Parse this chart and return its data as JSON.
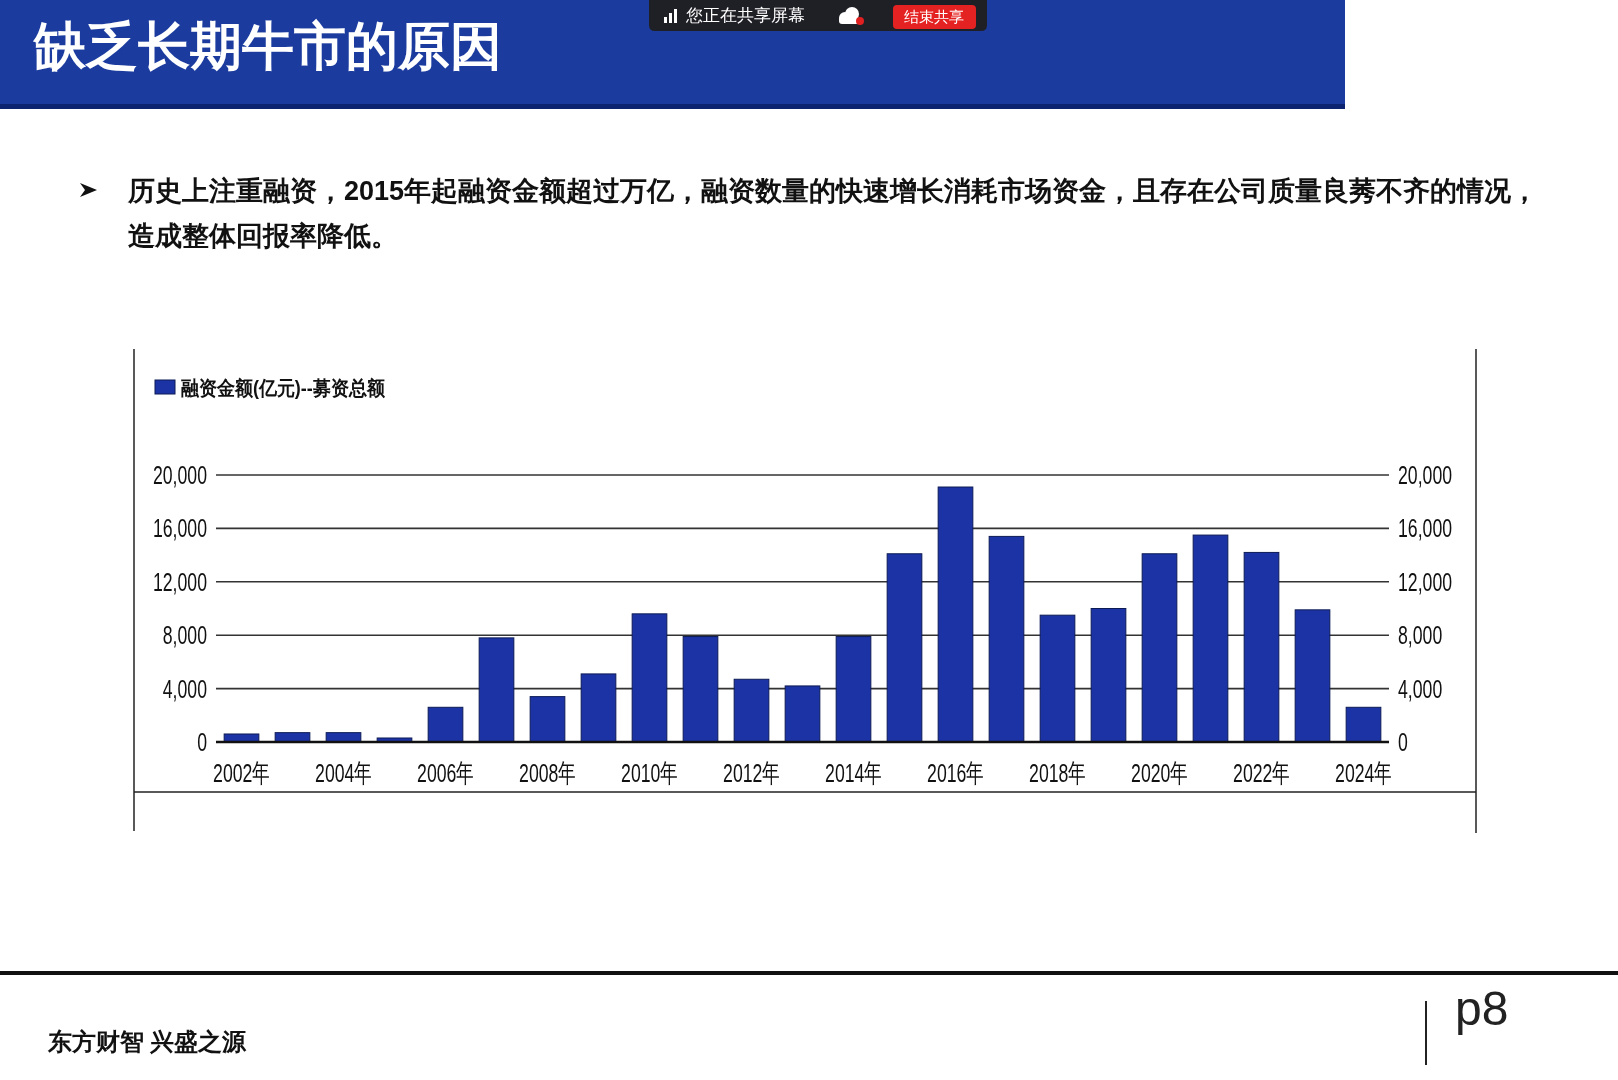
{
  "chart_data": {
    "type": "bar",
    "title": "缺乏长期牛市的原因",
    "subtitle": "历史上注重融资，2015年起融资金额超过万亿，融资数量的快速增长消耗市场资金，且存在公司质量良莠不齐的情况，造成整体回报率降低。",
    "categories": [
      "2002年",
      null,
      "2004年",
      null,
      "2006年",
      null,
      "2008年",
      null,
      "2010年",
      null,
      "2012年",
      null,
      "2014年",
      null,
      "2016年",
      null,
      "2018年",
      null,
      "2020年",
      null,
      "2022年",
      null,
      "2024年"
    ],
    "series": [
      {
        "name": "融资金额(亿元)--募资总额",
        "color": "#1c33a6",
        "values": [
          600,
          700,
          700,
          300,
          2600,
          7800,
          3400,
          5100,
          9600,
          7900,
          4700,
          4200,
          7900,
          14100,
          19100,
          15400,
          9500,
          10000,
          14100,
          15500,
          14200,
          9900,
          2600
        ]
      }
    ],
    "ylim": [
      0,
      20000
    ],
    "yticks": [
      0,
      {
        "value": 4000,
        "label": "4,000"
      },
      {
        "value": 8000,
        "label": "8,000"
      },
      {
        "value": 12000,
        "label": "12,000"
      },
      {
        "value": 16000,
        "label": "16,000"
      },
      {
        "value": 20000,
        "label": "20,000"
      }
    ],
    "y2lim": [
      0,
      20000
    ],
    "y2ticks": [
      0,
      {
        "value": 4000,
        "label": "4,000"
      },
      {
        "value": 8000,
        "label": "8,000"
      },
      {
        "value": 12000,
        "label": "12,000"
      },
      {
        "value": 16000,
        "label": "16,000"
      },
      {
        "value": 20000,
        "label": "20,000"
      }
    ],
    "grid": "y",
    "legend": "top left",
    "annotations": [
      "您正在共享屏幕",
      "结束共享",
      "东方财智 兴盛之源",
      "p8"
    ]
  }
}
